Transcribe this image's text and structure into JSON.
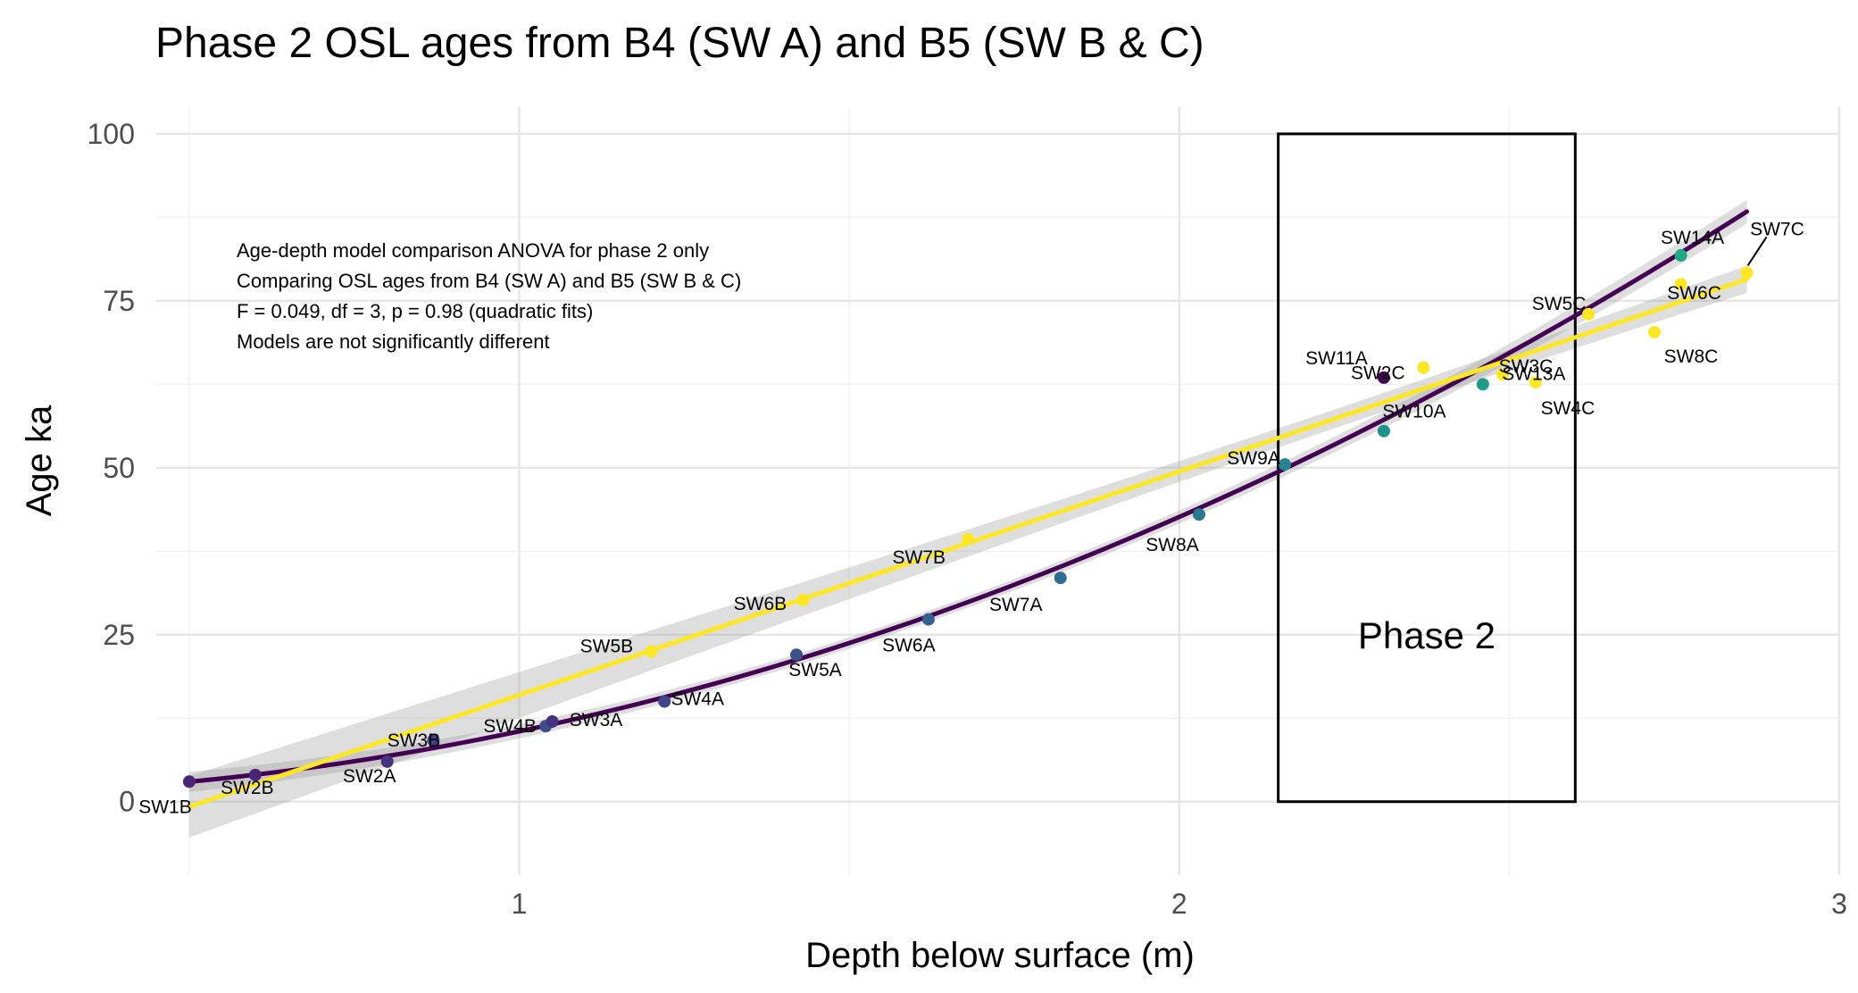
{
  "chart_data": {
    "type": "scatter",
    "title": "Phase 2 OSL ages from B4 (SW A) and B5 (SW B & C)",
    "xlabel": "Depth below surface (m)",
    "ylabel": "Age ka",
    "xlim": [
      0.45,
      3.0
    ],
    "ylim": [
      -11,
      104
    ],
    "x_ticks": [
      1,
      2,
      3
    ],
    "y_ticks": [
      0,
      25,
      50,
      75,
      100
    ],
    "grid": true,
    "legend": "none",
    "colors": {
      "B4": "#440154",
      "B5": "#fde725",
      "ribbon": "#999999"
    },
    "series": [
      {
        "group": "B4",
        "color": "#440154",
        "fit": "quadratic",
        "fit_x": [
          0.5,
          2.86
        ],
        "points": [
          {
            "label": "SW1B",
            "x": 0.5,
            "y": 3.0,
            "c": "#482576"
          },
          {
            "label": "SW2B",
            "x": 0.6,
            "y": 4.0,
            "c": "#482576"
          },
          {
            "label": "SW2A",
            "x": 0.8,
            "y": 6.0,
            "c": "#46337e"
          },
          {
            "label": "SW3B",
            "x": 0.87,
            "y": 9.2,
            "c": "#433e85"
          },
          {
            "label": "SW4B",
            "x": 1.04,
            "y": 11.3,
            "c": "#3d4e8a"
          },
          {
            "label": "SW3A",
            "x": 1.05,
            "y": 12.0,
            "c": "#46337e"
          },
          {
            "label": "SW4A",
            "x": 1.22,
            "y": 15.0,
            "c": "#414487"
          },
          {
            "label": "SW5A",
            "x": 1.42,
            "y": 22.0,
            "c": "#3b528b"
          },
          {
            "label": "SW6A",
            "x": 1.62,
            "y": 27.3,
            "c": "#355f8d"
          },
          {
            "label": "SW7A",
            "x": 1.82,
            "y": 33.5,
            "c": "#2f6c8e"
          },
          {
            "label": "SW8A",
            "x": 2.03,
            "y": 43.0,
            "c": "#2a788e"
          },
          {
            "label": "SW9A",
            "x": 2.16,
            "y": 50.5,
            "c": "#25848e"
          },
          {
            "label": "SW10A",
            "x": 2.31,
            "y": 55.5,
            "c": "#21918c"
          },
          {
            "label": "SW11A",
            "x": 2.31,
            "y": 63.5,
            "c": "#440154"
          },
          {
            "label": "SW13A",
            "x": 2.46,
            "y": 62.5,
            "c": "#1e9c89"
          },
          {
            "label": "SW14A",
            "x": 2.76,
            "y": 81.8,
            "c": "#22a884"
          }
        ]
      },
      {
        "group": "B5",
        "color": "#fde725",
        "fit": "linear",
        "fit_x": [
          0.5,
          2.86
        ],
        "points": [
          {
            "label": "SW5B",
            "x": 1.2,
            "y": 22.5,
            "c": "#fde725"
          },
          {
            "label": "SW6B",
            "x": 1.43,
            "y": 30.2,
            "c": "#fde725"
          },
          {
            "label": "SW7B",
            "x": 1.68,
            "y": 39.3,
            "c": "#fde725"
          },
          {
            "label": "SW2C",
            "x": 2.37,
            "y": 65.0,
            "c": "#fde725"
          },
          {
            "label": "SW3C",
            "x": 2.49,
            "y": 64.0,
            "c": "#fde725"
          },
          {
            "label": "SW4C",
            "x": 2.54,
            "y": 62.8,
            "c": "#fde725"
          },
          {
            "label": "SW5C",
            "x": 2.62,
            "y": 73.0,
            "c": "#fde725"
          },
          {
            "label": "SW8C",
            "x": 2.72,
            "y": 70.3,
            "c": "#fde725"
          },
          {
            "label": "SW6C",
            "x": 2.76,
            "y": 77.5,
            "c": "#fde725"
          },
          {
            "label": "SW7C",
            "x": 2.86,
            "y": 79.2,
            "c": "#fde725"
          }
        ]
      }
    ],
    "phase_box": {
      "x": [
        2.15,
        2.6
      ],
      "y": [
        0,
        100
      ],
      "label": "Phase 2"
    },
    "annotations": [
      "Age-depth model comparison ANOVA for phase 2 only",
      "Comparing OSL ages from B4 (SW A) and B5 (SW B & C)",
      "F = 0.049, df = 3, p = 0.98 (quadratic fits)",
      "Models are not significantly different"
    ]
  }
}
